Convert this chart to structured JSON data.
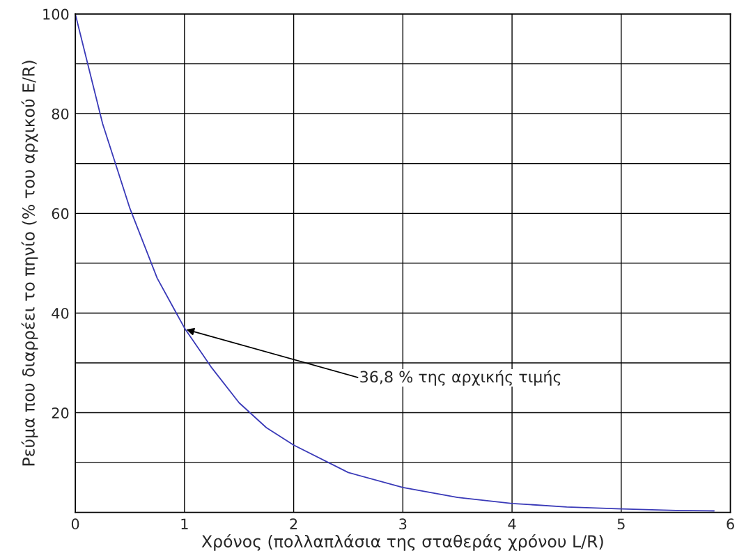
{
  "chart_data": {
    "type": "line",
    "xlabel": "Χρόνος (πολλαπλάσια της σταθεράς χρόνου L/R)",
    "ylabel": "Ρεύμα που διαρρέει το πηνίο (% του αρχικού E/R)",
    "x": [
      0,
      0.25,
      0.5,
      0.75,
      1,
      1.25,
      1.5,
      1.75,
      2,
      2.5,
      3,
      3.5,
      4,
      4.5,
      5,
      5.5,
      5.85
    ],
    "series": [
      {
        "color": "#3a3ab8",
        "values": [
          100,
          78,
          61,
          47,
          37,
          29,
          22,
          17,
          13.5,
          8,
          5,
          3,
          1.8,
          1.1,
          0.7,
          0.4,
          0.3
        ]
      }
    ],
    "xlim": [
      0,
      6
    ],
    "xticks": [
      0,
      1,
      2,
      3,
      4,
      5,
      6
    ],
    "ylim": [
      0,
      100
    ],
    "yticks": [
      {
        "value": 10,
        "label": null
      },
      20,
      {
        "value": 30,
        "label": null
      },
      40,
      {
        "value": 50,
        "label": null
      },
      60,
      {
        "value": 70,
        "label": null
      },
      80,
      {
        "value": 90,
        "label": null
      },
      100
    ],
    "grid": true,
    "annotations": [
      {
        "text": "36,8 % της αρχικής τιμής",
        "x": 1,
        "y": 36.8
      }
    ]
  }
}
